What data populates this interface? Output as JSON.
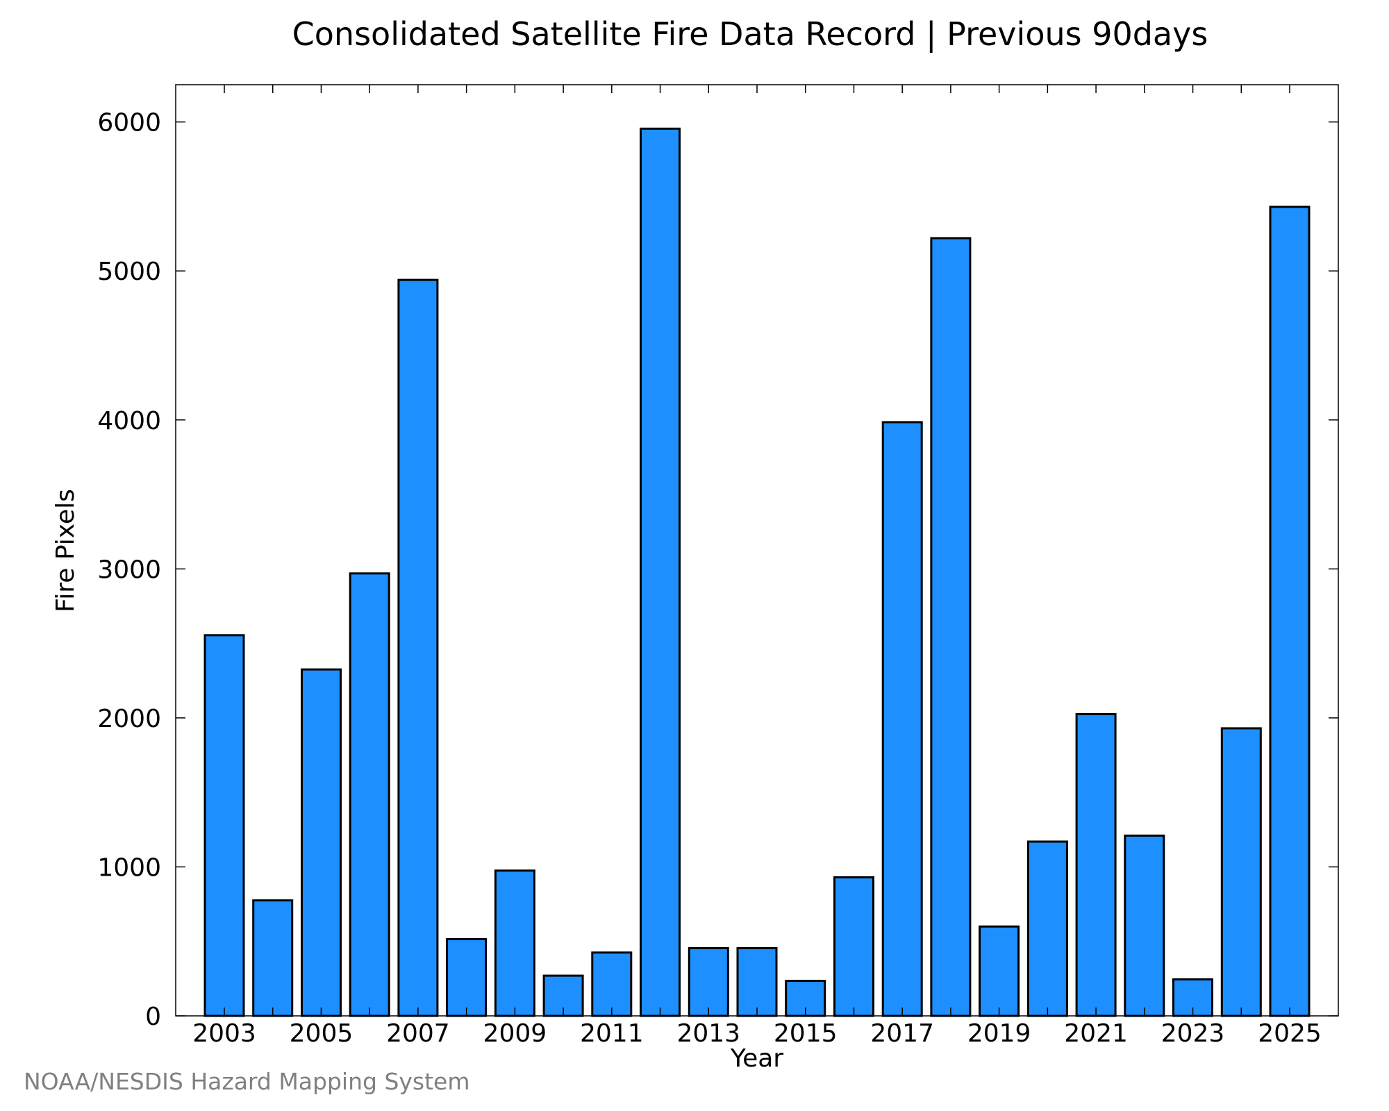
{
  "chart_data": {
    "type": "bar",
    "title": "Consolidated Satellite Fire Data Record | Previous 90days",
    "xlabel": "Year",
    "ylabel": "Fire Pixels",
    "categories": [
      "2003",
      "2004",
      "2005",
      "2006",
      "2007",
      "2008",
      "2009",
      "2010",
      "2011",
      "2012",
      "2013",
      "2014",
      "2015",
      "2016",
      "2017",
      "2018",
      "2019",
      "2020",
      "2021",
      "2022",
      "2023",
      "2024",
      "2025"
    ],
    "values": [
      2555,
      775,
      2325,
      2970,
      4940,
      515,
      975,
      270,
      425,
      5955,
      455,
      455,
      235,
      930,
      3985,
      5220,
      600,
      1170,
      2025,
      1210,
      245,
      1930,
      5430
    ],
    "x_tick_labels": [
      "2003",
      "2005",
      "2007",
      "2009",
      "2011",
      "2013",
      "2015",
      "2017",
      "2019",
      "2021",
      "2023",
      "2025"
    ],
    "y_tick_labels": [
      "0",
      "1000",
      "2000",
      "3000",
      "4000",
      "5000",
      "6000"
    ],
    "ylim": [
      0,
      6250
    ],
    "grid": false,
    "colors": {
      "bar_fill": "#1e8fff",
      "bar_stroke": "#000000",
      "axis": "#000000"
    }
  },
  "credit": "NOAA/NESDIS Hazard Mapping System"
}
